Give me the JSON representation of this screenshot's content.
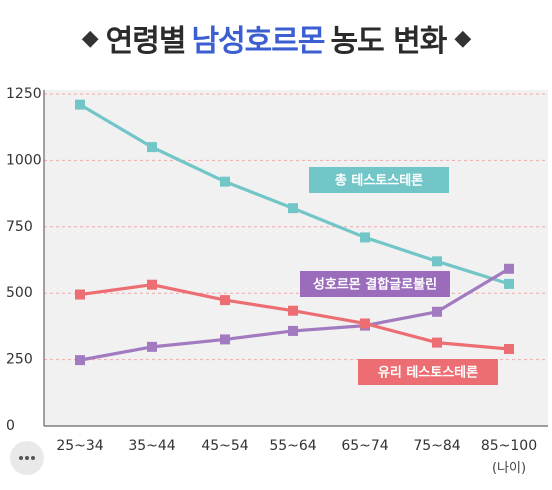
{
  "title": {
    "left_mark": "◆",
    "part1": "연령별",
    "highlight": "남성호르몬",
    "part2": "농도 변화",
    "right_mark": "◆"
  },
  "chart_data": {
    "type": "line",
    "title": "연령별 남성호르몬 농도 변화",
    "xlabel": "(나이)",
    "ylabel": "",
    "categories": [
      "25~34",
      "35~44",
      "45~54",
      "55~64",
      "65~74",
      "75~84",
      "85~100"
    ],
    "ylim": [
      0,
      1250
    ],
    "yticks": [
      0,
      250,
      500,
      750,
      1000,
      1250
    ],
    "grid": true,
    "series": [
      {
        "name": "총 테스토스테론",
        "color": "#72c6c8",
        "label_bg": "#72c6c8",
        "values": [
          1210,
          1050,
          920,
          820,
          710,
          620,
          535
        ]
      },
      {
        "name": "성호르몬 결합글로불린",
        "color": "#a27ac0",
        "label_bg": "#9a6cbb",
        "values": [
          248,
          298,
          326,
          358,
          378,
          430,
          592
        ]
      },
      {
        "name": "유리 테스토스테론",
        "color": "#ec6e73",
        "label_bg": "#ec6e73",
        "values": [
          495,
          532,
          474,
          434,
          386,
          314,
          290
        ]
      }
    ]
  },
  "overlay_icon": "dots-icon"
}
